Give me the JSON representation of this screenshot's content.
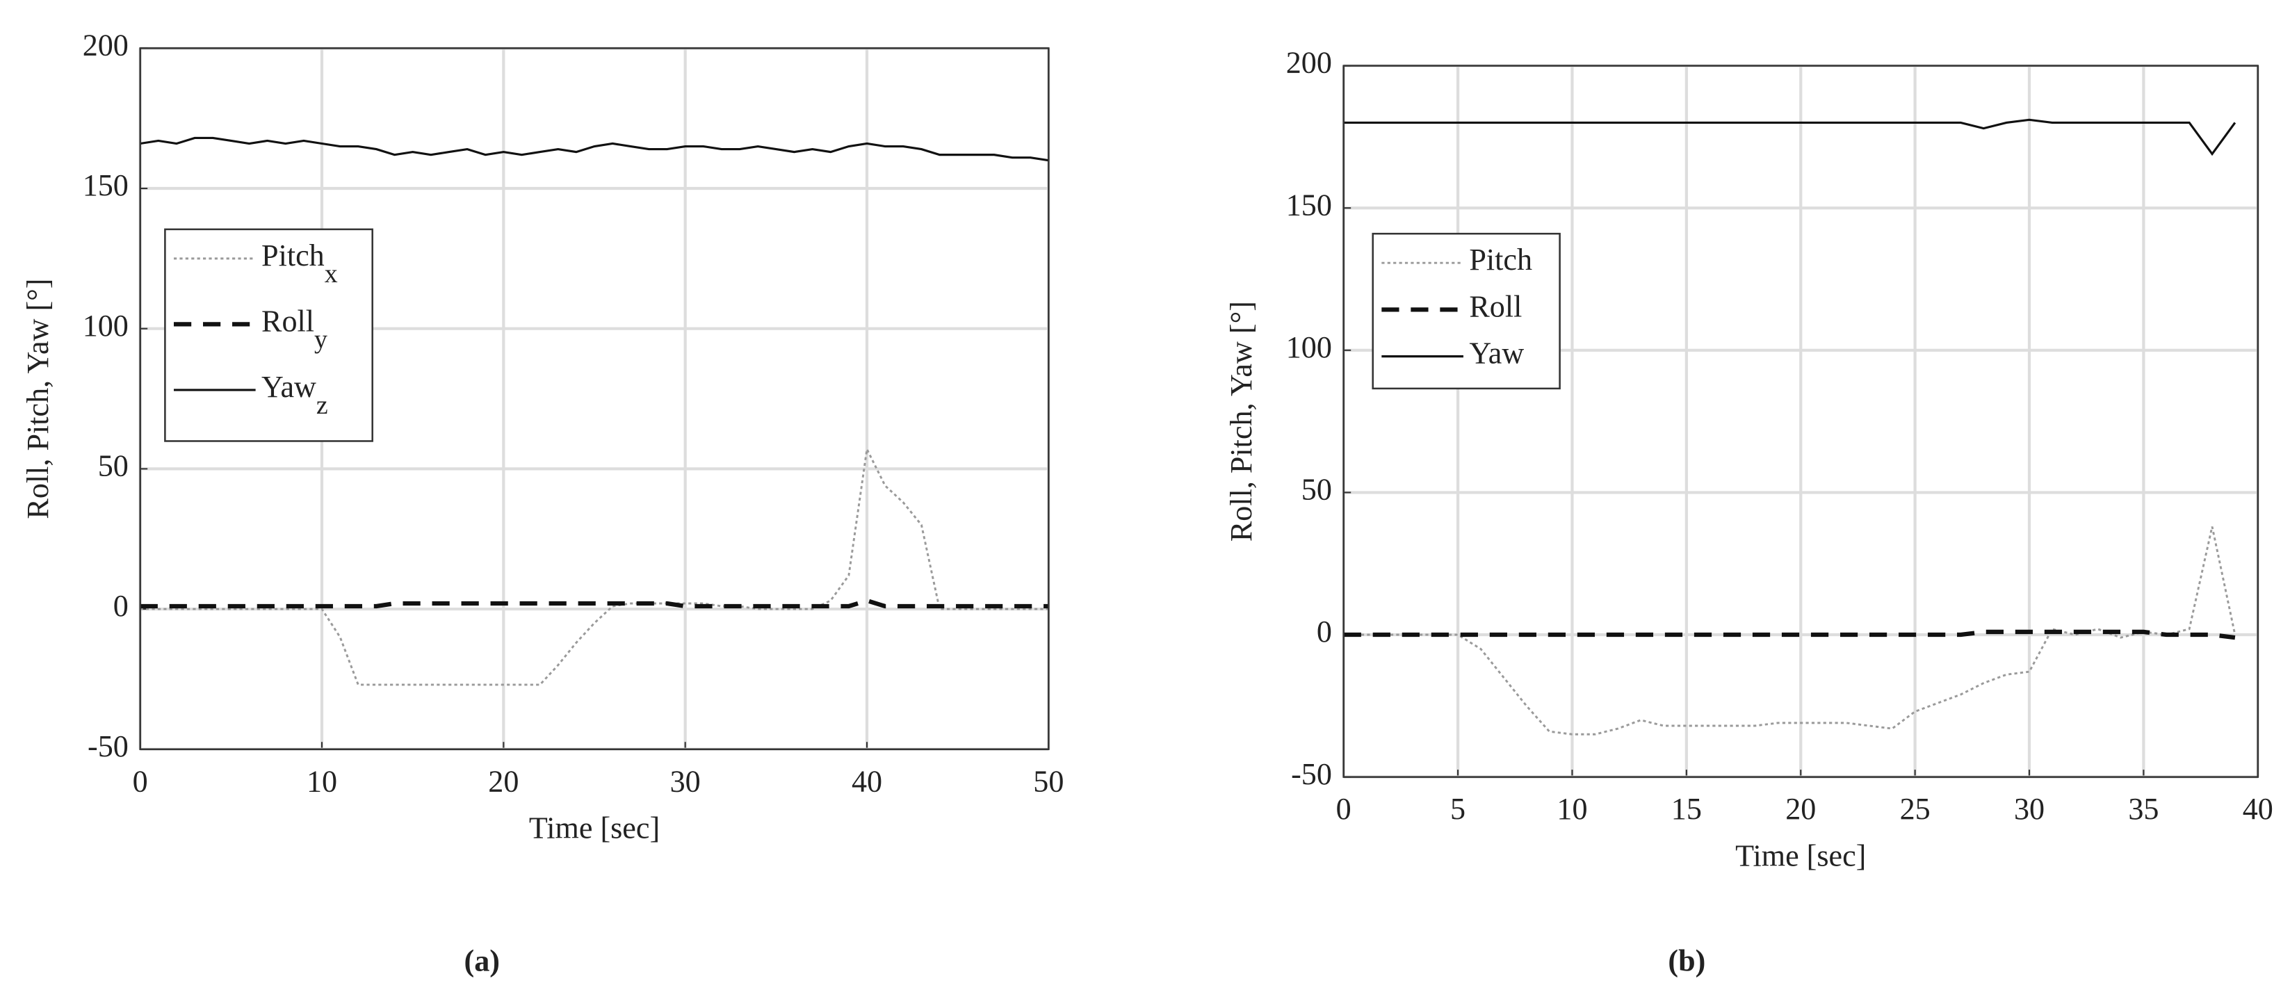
{
  "chart_data": [
    {
      "type": "line",
      "caption": "(a)",
      "xlabel": "Time [sec]",
      "ylabel": "Roll, Pitch, Yaw  [°]",
      "xlim": [
        0,
        50
      ],
      "ylim": [
        -50,
        200
      ],
      "xticks": [
        0,
        10,
        20,
        30,
        40,
        50
      ],
      "yticks": [
        -50,
        0,
        50,
        100,
        150,
        200
      ],
      "grid": true,
      "x": [
        0,
        1,
        2,
        3,
        4,
        5,
        6,
        7,
        8,
        9,
        10,
        11,
        12,
        13,
        14,
        15,
        16,
        17,
        18,
        19,
        20,
        21,
        22,
        23,
        24,
        25,
        26,
        27,
        28,
        29,
        30,
        31,
        32,
        33,
        34,
        35,
        36,
        37,
        38,
        39,
        40,
        41,
        42,
        43,
        44,
        45,
        46,
        47,
        48,
        49,
        50
      ],
      "series": [
        {
          "name": "Pitch",
          "subscript": "x",
          "color": "#9a9a9a",
          "style": "dotted",
          "values": [
            0,
            0,
            0,
            0,
            0,
            0,
            0,
            0,
            0,
            0,
            0,
            -10,
            -27,
            -27,
            -27,
            -27,
            -27,
            -27,
            -27,
            -27,
            -27,
            -27,
            -27,
            -20,
            -12,
            -5,
            1,
            2,
            2,
            2,
            2,
            2,
            1,
            1,
            0,
            0,
            0,
            0,
            3,
            12,
            57,
            44,
            38,
            30,
            0,
            0,
            0,
            0,
            0,
            0,
            0
          ]
        },
        {
          "name": "Roll",
          "subscript": "y",
          "color": "#111111",
          "style": "dashed",
          "values": [
            1,
            1,
            1,
            1,
            1,
            1,
            1,
            1,
            1,
            1,
            1,
            1,
            1,
            1,
            2,
            2,
            2,
            2,
            2,
            2,
            2,
            2,
            2,
            2,
            2,
            2,
            2,
            2,
            2,
            2,
            1,
            1,
            1,
            1,
            1,
            1,
            1,
            1,
            1,
            1,
            3,
            1,
            1,
            1,
            1,
            1,
            1,
            1,
            1,
            1,
            1
          ]
        },
        {
          "name": "Yaw",
          "subscript": "z",
          "color": "#111111",
          "style": "solid",
          "values": [
            166,
            167,
            166,
            168,
            168,
            167,
            166,
            167,
            166,
            167,
            166,
            165,
            165,
            164,
            162,
            163,
            162,
            163,
            164,
            162,
            163,
            162,
            163,
            164,
            163,
            165,
            166,
            165,
            164,
            164,
            165,
            165,
            164,
            164,
            165,
            164,
            163,
            164,
            163,
            165,
            166,
            165,
            165,
            164,
            162,
            162,
            162,
            162,
            161,
            161,
            160
          ]
        }
      ]
    },
    {
      "type": "line",
      "caption": "(b)",
      "xlabel": "Time [sec]",
      "ylabel": "Roll, Pitch, Yaw  [°]",
      "xlim": [
        0,
        40
      ],
      "ylim": [
        -50,
        200
      ],
      "xticks": [
        0,
        5,
        10,
        15,
        20,
        25,
        30,
        35,
        40
      ],
      "yticks": [
        -50,
        0,
        50,
        100,
        150,
        200
      ],
      "grid": true,
      "x": [
        0,
        1,
        2,
        3,
        4,
        5,
        6,
        7,
        8,
        9,
        10,
        11,
        12,
        13,
        14,
        15,
        16,
        17,
        18,
        19,
        20,
        21,
        22,
        23,
        24,
        25,
        26,
        27,
        28,
        29,
        30,
        31,
        32,
        33,
        34,
        35,
        36,
        37,
        38,
        39
      ],
      "series": [
        {
          "name": "Pitch",
          "color": "#9a9a9a",
          "style": "dotted",
          "values": [
            0,
            0,
            0,
            0,
            0,
            0,
            -5,
            -15,
            -25,
            -34,
            -35,
            -35,
            -33,
            -30,
            -32,
            -32,
            -32,
            -32,
            -32,
            -31,
            -31,
            -31,
            -31,
            -32,
            -33,
            -27,
            -24,
            -21,
            -17,
            -14,
            -13,
            2,
            0,
            2,
            -1,
            1,
            0,
            2,
            38,
            0
          ]
        },
        {
          "name": "Roll",
          "color": "#111111",
          "style": "dashed",
          "values": [
            0,
            0,
            0,
            0,
            0,
            0,
            0,
            0,
            0,
            0,
            0,
            0,
            0,
            0,
            0,
            0,
            0,
            0,
            0,
            0,
            0,
            0,
            0,
            0,
            0,
            0,
            0,
            0,
            1,
            1,
            1,
            1,
            1,
            1,
            1,
            1,
            0,
            0,
            0,
            -1
          ]
        },
        {
          "name": "Yaw",
          "color": "#111111",
          "style": "solid",
          "values": [
            180,
            180,
            180,
            180,
            180,
            180,
            180,
            180,
            180,
            180,
            180,
            180,
            180,
            180,
            180,
            180,
            180,
            180,
            180,
            180,
            180,
            180,
            180,
            180,
            180,
            180,
            180,
            180,
            178,
            180,
            181,
            180,
            180,
            180,
            180,
            180,
            180,
            180,
            169,
            180
          ]
        }
      ]
    }
  ]
}
